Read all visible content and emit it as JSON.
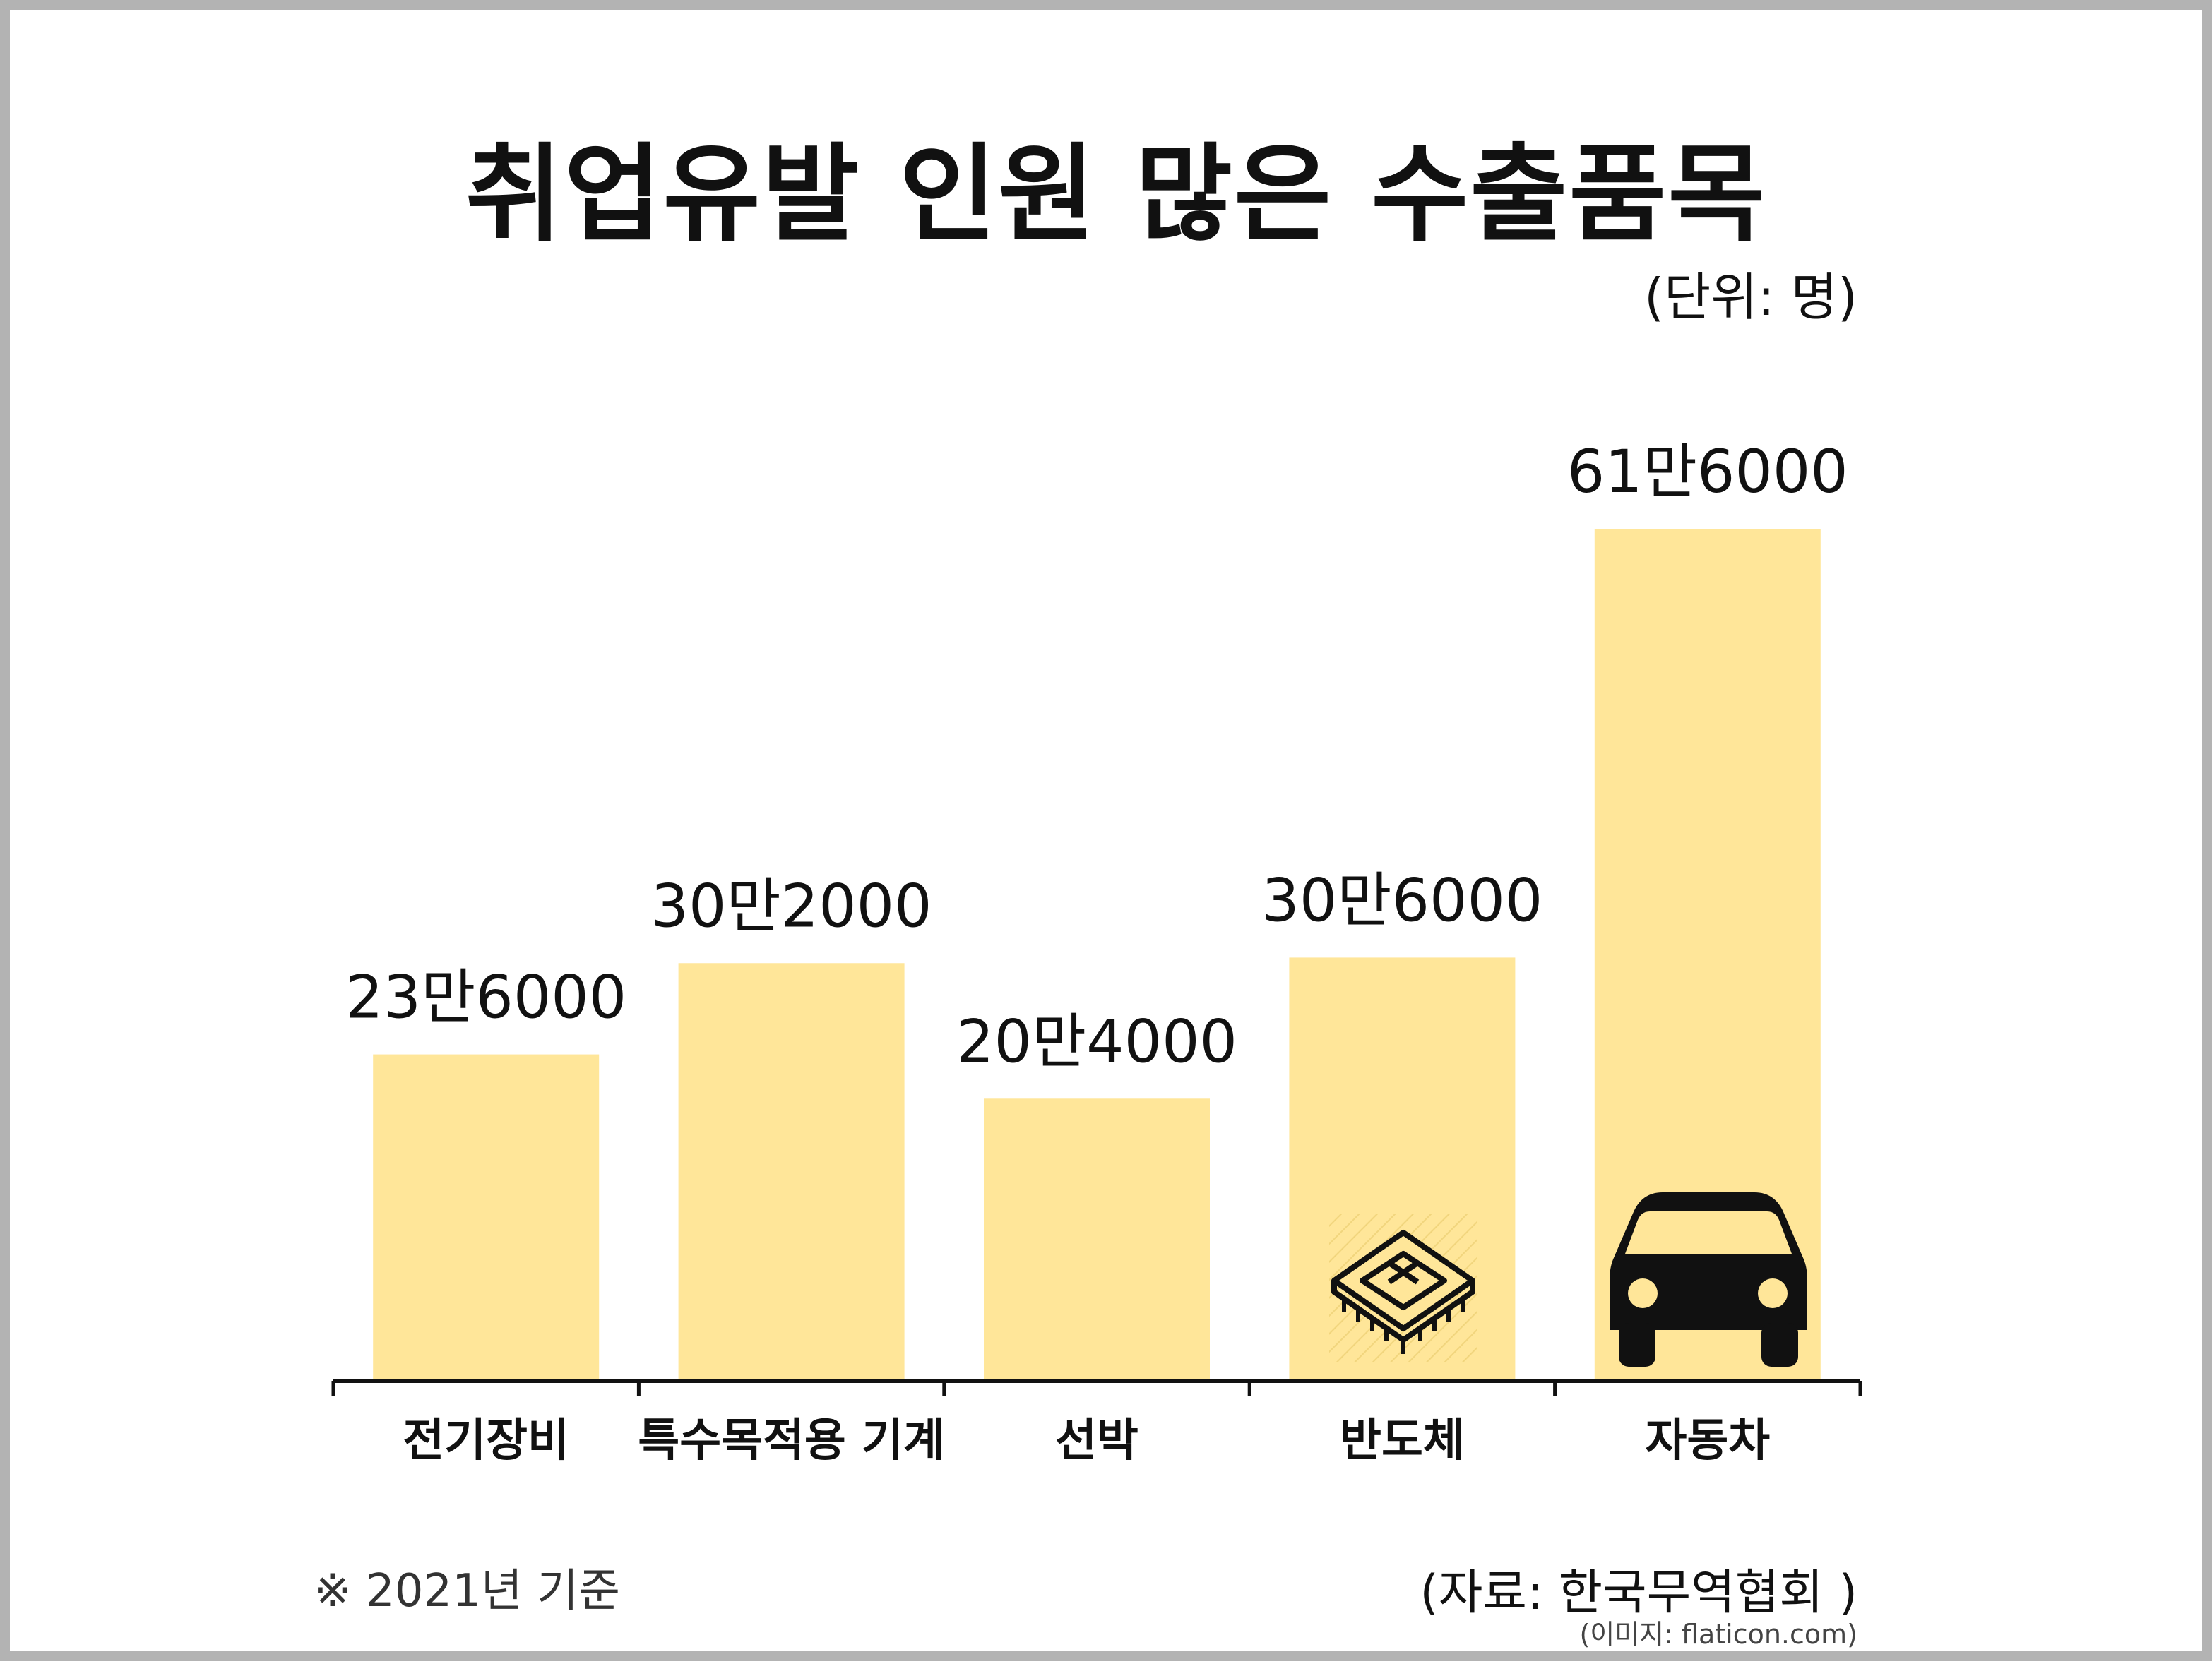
{
  "title": "취업유발 인원 많은 수출품목",
  "unit_label": "(단위: 명)",
  "note": "※ 2021년 기준",
  "source": "(자료: 한국무역협회 )",
  "image_credit": "(이미지: flaticon.com)",
  "chart_data": {
    "type": "bar",
    "categories": [
      "전기장비",
      "특수목적용 기계",
      "선박",
      "반도체",
      "자동차"
    ],
    "values": [
      236000,
      302000,
      204000,
      306000,
      616000
    ],
    "value_labels": [
      "23만6000",
      "30만2000",
      "20만4000",
      "30만6000",
      "61만6000"
    ],
    "title": "취업유발 인원 많은 수출품목",
    "xlabel": "",
    "ylabel": "",
    "ylim": [
      0,
      616000
    ],
    "grid": false,
    "legend": "none",
    "bar_color": "#ffe699",
    "axis_color": "#111111",
    "icons": [
      null,
      null,
      null,
      "microchip-icon",
      "car-icon"
    ]
  }
}
